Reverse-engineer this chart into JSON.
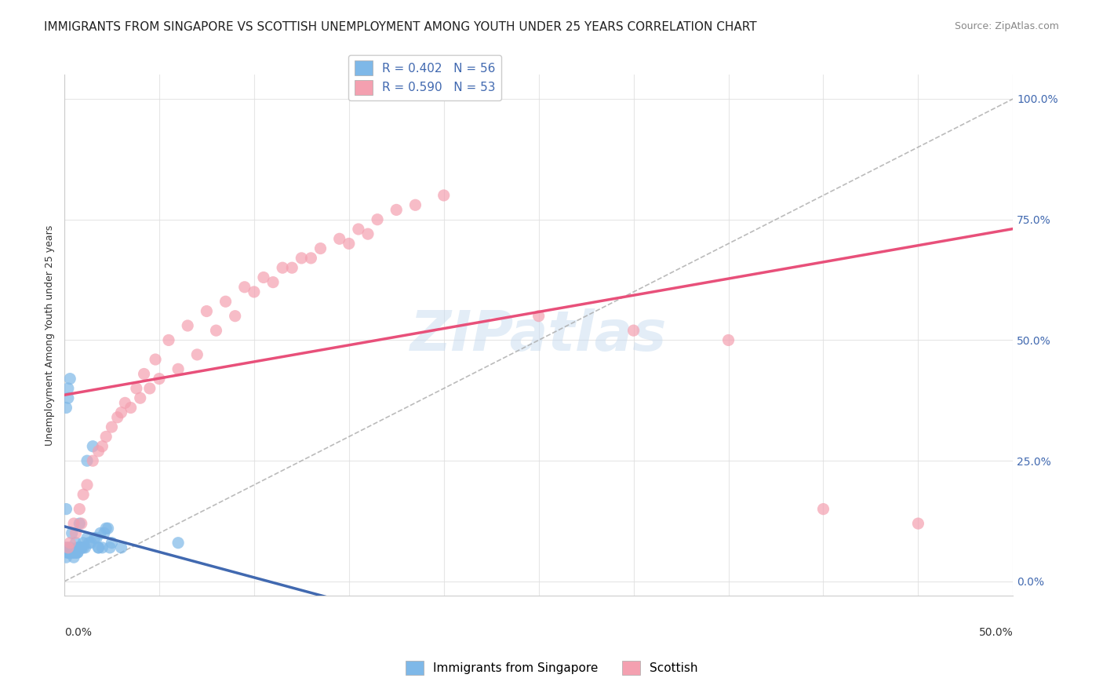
{
  "title": "IMMIGRANTS FROM SINGAPORE VS SCOTTISH UNEMPLOYMENT AMONG YOUTH UNDER 25 YEARS CORRELATION CHART",
  "source": "Source: ZipAtlas.com",
  "ylabel_left": "Unemployment Among Youth under 25 years",
  "ylabel_right_ticks": [
    "0.0%",
    "25.0%",
    "50.0%",
    "75.0%",
    "100.0%"
  ],
  "xlim": [
    0.0,
    0.5
  ],
  "ylim": [
    -0.03,
    1.05
  ],
  "legend_blue_r": "R = 0.402",
  "legend_blue_n": "N = 56",
  "legend_pink_r": "R = 0.590",
  "legend_pink_n": "N = 53",
  "blue_color": "#7EB8E8",
  "pink_color": "#F4A0B0",
  "blue_line_color": "#4169B0",
  "pink_line_color": "#E8507A",
  "blue_scatter_x": [
    0.002,
    0.003,
    0.001,
    0.004,
    0.006,
    0.008,
    0.012,
    0.015,
    0.018,
    0.02,
    0.005,
    0.007,
    0.009,
    0.01,
    0.011,
    0.013,
    0.014,
    0.016,
    0.017,
    0.019,
    0.021,
    0.022,
    0.023,
    0.024,
    0.025,
    0.003,
    0.004,
    0.006,
    0.007,
    0.008,
    0.001,
    0.002,
    0.003,
    0.005,
    0.009,
    0.01,
    0.012,
    0.03,
    0.001,
    0.002,
    0.003,
    0.001,
    0.002,
    0.003,
    0.004,
    0.005,
    0.006,
    0.007,
    0.001,
    0.018,
    0.002,
    0.003,
    0.004,
    0.006,
    0.008,
    0.06
  ],
  "blue_scatter_y": [
    0.38,
    0.42,
    0.15,
    0.1,
    0.08,
    0.12,
    0.25,
    0.28,
    0.07,
    0.07,
    0.05,
    0.06,
    0.07,
    0.07,
    0.07,
    0.08,
    0.08,
    0.09,
    0.09,
    0.1,
    0.1,
    0.11,
    0.11,
    0.07,
    0.08,
    0.06,
    0.06,
    0.06,
    0.07,
    0.07,
    0.06,
    0.06,
    0.06,
    0.06,
    0.07,
    0.08,
    0.09,
    0.07,
    0.36,
    0.4,
    0.07,
    0.07,
    0.06,
    0.06,
    0.06,
    0.06,
    0.06,
    0.06,
    0.05,
    0.07,
    0.06,
    0.06,
    0.06,
    0.06,
    0.07,
    0.08
  ],
  "pink_scatter_x": [
    0.002,
    0.015,
    0.025,
    0.035,
    0.045,
    0.06,
    0.08,
    0.1,
    0.12,
    0.15,
    0.01,
    0.02,
    0.03,
    0.04,
    0.05,
    0.07,
    0.09,
    0.11,
    0.13,
    0.16,
    0.005,
    0.008,
    0.012,
    0.018,
    0.022,
    0.028,
    0.032,
    0.038,
    0.042,
    0.048,
    0.055,
    0.065,
    0.075,
    0.085,
    0.095,
    0.105,
    0.115,
    0.125,
    0.135,
    0.145,
    0.155,
    0.165,
    0.175,
    0.185,
    0.25,
    0.3,
    0.35,
    0.2,
    0.4,
    0.45,
    0.003,
    0.006,
    0.009
  ],
  "pink_scatter_y": [
    0.07,
    0.25,
    0.32,
    0.36,
    0.4,
    0.44,
    0.52,
    0.6,
    0.65,
    0.7,
    0.18,
    0.28,
    0.35,
    0.38,
    0.42,
    0.47,
    0.55,
    0.62,
    0.67,
    0.72,
    0.12,
    0.15,
    0.2,
    0.27,
    0.3,
    0.34,
    0.37,
    0.4,
    0.43,
    0.46,
    0.5,
    0.53,
    0.56,
    0.58,
    0.61,
    0.63,
    0.65,
    0.67,
    0.69,
    0.71,
    0.73,
    0.75,
    0.77,
    0.78,
    0.55,
    0.52,
    0.5,
    0.8,
    0.15,
    0.12,
    0.08,
    0.1,
    0.12
  ],
  "background_color": "#FFFFFF",
  "grid_color": "#E0E0E0",
  "watermark_text": "ZIPatlas",
  "title_fontsize": 11,
  "axis_label_fontsize": 9
}
